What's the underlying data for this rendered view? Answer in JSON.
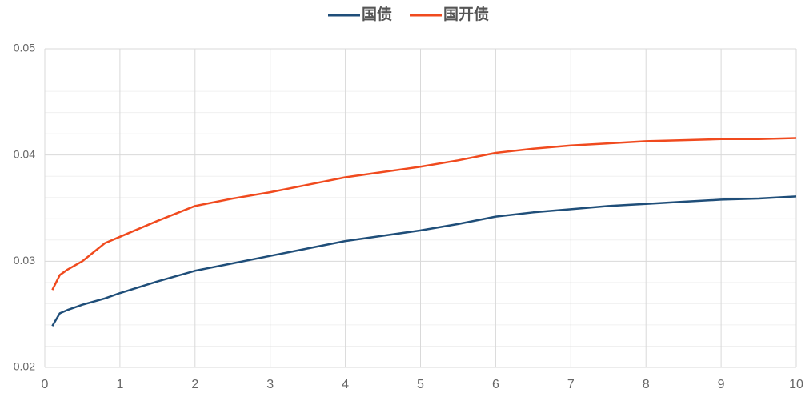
{
  "chart_data": {
    "type": "line",
    "x": [
      0.1,
      0.2,
      0.3,
      0.5,
      0.8,
      1,
      1.5,
      2,
      2.5,
      3,
      3.5,
      4,
      4.5,
      5,
      5.5,
      6,
      6.5,
      7,
      7.5,
      8,
      8.5,
      9,
      9.5,
      10
    ],
    "series": [
      {
        "name": "国债",
        "color": "#1f4e79",
        "values": [
          0.0239,
          0.0251,
          0.0254,
          0.0259,
          0.0265,
          0.027,
          0.0281,
          0.0291,
          0.0298,
          0.0305,
          0.0312,
          0.0319,
          0.0324,
          0.0329,
          0.0335,
          0.0342,
          0.0346,
          0.0349,
          0.0352,
          0.0354,
          0.0356,
          0.0358,
          0.0359,
          0.0361
        ]
      },
      {
        "name": "国开债",
        "color": "#f04a1e",
        "values": [
          0.0273,
          0.0287,
          0.0292,
          0.03,
          0.0317,
          0.0323,
          0.0338,
          0.0352,
          0.0359,
          0.0365,
          0.0372,
          0.0379,
          0.0384,
          0.0389,
          0.0395,
          0.0402,
          0.0406,
          0.0409,
          0.0411,
          0.0413,
          0.0414,
          0.0415,
          0.0415,
          0.0416
        ]
      }
    ],
    "xlim": [
      0,
      10
    ],
    "xticks": [
      0,
      1,
      2,
      3,
      4,
      5,
      6,
      7,
      8,
      9,
      10
    ],
    "ylim": [
      0.02,
      0.05
    ],
    "yticks": [
      0.02,
      0.03,
      0.04,
      0.05
    ],
    "y_minor_ticks": [
      0.022,
      0.024,
      0.026,
      0.028,
      0.032,
      0.034,
      0.036,
      0.038,
      0.042,
      0.044,
      0.046,
      0.048
    ],
    "grid": true,
    "legend": "top"
  }
}
